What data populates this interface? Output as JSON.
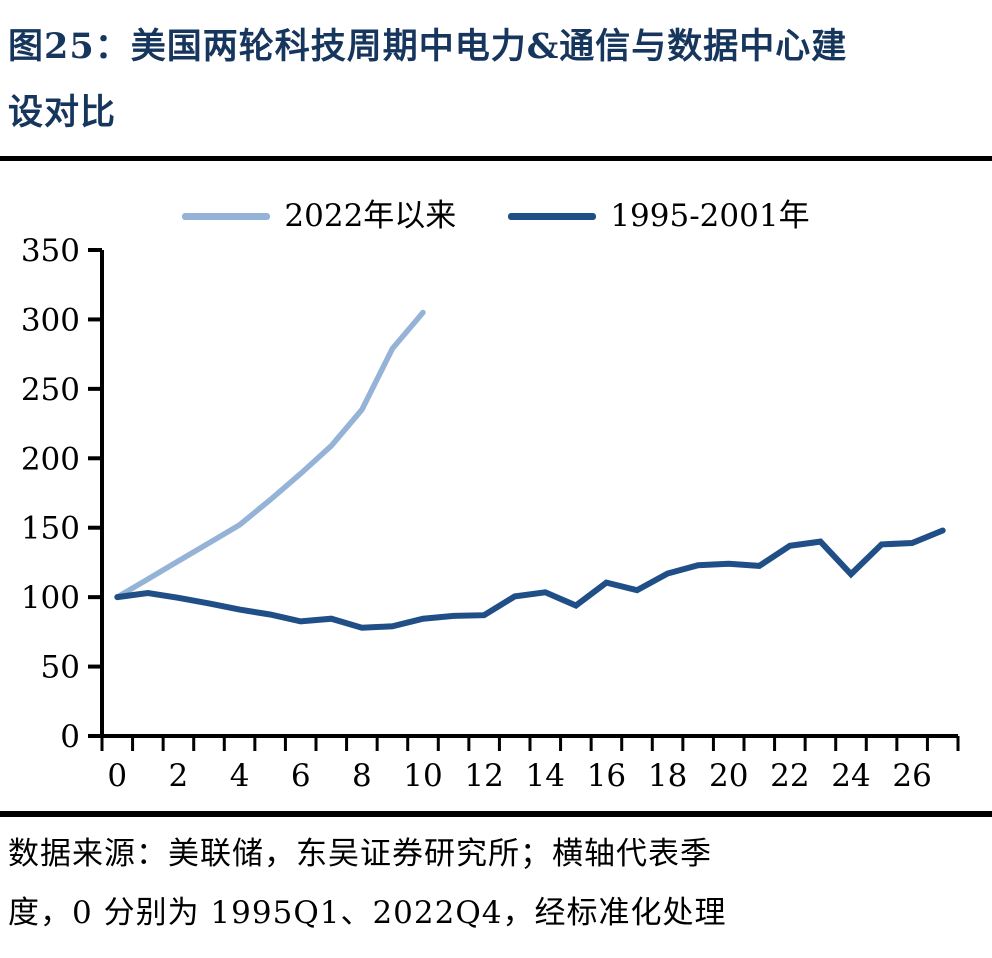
{
  "page": {
    "title_line1": "图25：美国两轮科技周期中电力&通信与数据中心建",
    "title_line2": "设对比",
    "footer_line1": "数据来源：美联储，东吴证券研究所；横轴代表季",
    "footer_line2": "度，0 分别为 1995Q1、2022Q4，经标准化处理"
  },
  "colors": {
    "title_text": "#17365D",
    "axis": "#000000",
    "divider": "#000000",
    "series_2022": "#95B3D7",
    "series_1995": "#204F87"
  },
  "chart_data": {
    "type": "line",
    "x": [
      0,
      1,
      2,
      3,
      4,
      5,
      6,
      7,
      8,
      9,
      10,
      11,
      12,
      13,
      14,
      15,
      16,
      17,
      18,
      19,
      20,
      21,
      22,
      23,
      24,
      25,
      26,
      27
    ],
    "series": [
      {
        "name": "2022年以来",
        "color": "#95B3D7",
        "values": [
          100,
          113,
          126,
          139,
          152,
          170,
          189,
          209,
          235,
          279,
          305
        ]
      },
      {
        "name": "1995-2001年",
        "color": "#204F87",
        "values": [
          100,
          103,
          99.5,
          95.5,
          91,
          87.5,
          82.5,
          84.5,
          78,
          79,
          84.5,
          86.5,
          87,
          100.5,
          103.5,
          94,
          110.5,
          105,
          117,
          123,
          124,
          122.5,
          137,
          140,
          116.5,
          138,
          139,
          148
        ]
      }
    ],
    "title": "美国两轮科技周期中电力&通信与数据中心建设对比",
    "xlabel": "",
    "ylabel": "",
    "y_ticks": [
      0,
      50,
      100,
      150,
      200,
      250,
      300,
      350
    ],
    "x_tick_labels": [
      0,
      2,
      4,
      6,
      8,
      10,
      12,
      14,
      16,
      18,
      20,
      22,
      24,
      26
    ],
    "ylim": [
      0,
      350
    ],
    "xlim": [
      0,
      28
    ],
    "grid": false,
    "legend_position": "top",
    "note": "横轴代表季度，0 分别为 1995Q1、2022Q4，经标准化处理"
  }
}
